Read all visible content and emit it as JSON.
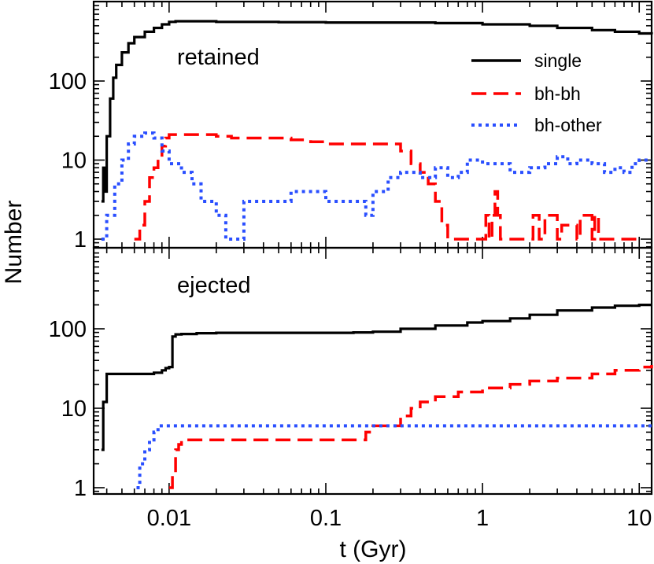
{
  "chart_data": {
    "type": "line",
    "xlabel": "t (Gyr)",
    "ylabel": "Number",
    "xscale": "log",
    "yscale": "log",
    "xlim": [
      0.0033,
      12
    ],
    "x_ticklabels": [
      "0.01",
      "0.1",
      "1",
      "10"
    ],
    "legend": {
      "placement": "top-right of upper panel",
      "entries": [
        {
          "name": "single",
          "color": "#000000",
          "style": "solid"
        },
        {
          "name": "bh-bh",
          "color": "#ff0000",
          "style": "dashed"
        },
        {
          "name": "bh-other",
          "color": "#2a4fff",
          "style": "dotted"
        }
      ]
    },
    "panels": [
      {
        "label": "retained",
        "ylim": [
          0.8,
          1000
        ],
        "y_ticklabels": [
          "1",
          "10",
          "100"
        ],
        "series": [
          {
            "name": "single",
            "x": [
              0.0037,
              0.0038,
              0.0039,
              0.004,
              0.0042,
              0.0044,
              0.0046,
              0.005,
              0.0055,
              0.006,
              0.007,
              0.008,
              0.009,
              0.01,
              0.011,
              0.02,
              0.05,
              0.1,
              0.3,
              0.5,
              1,
              2,
              3,
              5,
              7,
              10,
              12
            ],
            "y": [
              3,
              8,
              4,
              20,
              60,
              110,
              160,
              230,
              300,
              360,
              420,
              470,
              520,
              560,
              570,
              560,
              555,
              550,
              550,
              540,
              520,
              500,
              470,
              440,
              420,
              400,
              390
            ]
          },
          {
            "name": "bh-bh",
            "x": [
              0.006,
              0.0065,
              0.007,
              0.0075,
              0.008,
              0.0085,
              0.009,
              0.0095,
              0.01,
              0.012,
              0.015,
              0.02,
              0.025,
              0.03,
              0.06,
              0.08,
              0.1,
              0.2,
              0.3,
              0.35,
              0.4,
              0.45,
              0.5,
              0.55,
              0.6,
              1,
              1.05,
              1.1,
              1.15,
              1.2,
              1.25,
              1.3,
              1.5,
              2,
              2.1,
              2.3,
              2.5,
              3,
              3.2,
              4,
              4.2,
              5,
              5.2,
              5.5,
              6,
              10
            ],
            "y": [
              1,
              1.5,
              3,
              6,
              8,
              11,
              15,
              19,
              21,
              21,
              21,
              20,
              19,
              19,
              18,
              17,
              16,
              16,
              13,
              9,
              7,
              5,
              3,
              1.5,
              1,
              1,
              2,
              1,
              2,
              4,
              2,
              1,
              1,
              1,
              2,
              1,
              2,
              1,
              1.5,
              1,
              2,
              1,
              2,
              1,
              1,
              1
            ]
          },
          {
            "name": "bh-other",
            "x": [
              0.0037,
              0.004,
              0.0045,
              0.005,
              0.0055,
              0.006,
              0.007,
              0.008,
              0.009,
              0.01,
              0.012,
              0.014,
              0.016,
              0.02,
              0.023,
              0.03,
              0.05,
              0.06,
              0.1,
              0.15,
              0.18,
              0.2,
              0.25,
              0.3,
              0.4,
              0.5,
              0.6,
              0.7,
              0.8,
              1,
              1.5,
              2,
              2.5,
              3,
              3.5,
              4,
              5,
              6,
              7,
              8,
              9,
              10,
              12
            ],
            "y": [
              1,
              2,
              5,
              10,
              16,
              20,
              22,
              19,
              13,
              9,
              7,
              5,
              3,
              2,
              1,
              3,
              3,
              4,
              3,
              3,
              2,
              4,
              6,
              7,
              6,
              8,
              6,
              7,
              10,
              9,
              7,
              8,
              9,
              11,
              9,
              10,
              9,
              7,
              8,
              7,
              9,
              10,
              10
            ]
          }
        ]
      },
      {
        "label": "ejected",
        "ylim": [
          0.8,
          1000
        ],
        "y_ticklabels": [
          "1",
          "10",
          "100"
        ],
        "series": [
          {
            "name": "single",
            "x": [
              0.0037,
              0.0038,
              0.004,
              0.005,
              0.007,
              0.008,
              0.009,
              0.0095,
              0.01,
              0.0105,
              0.011,
              0.012,
              0.015,
              0.02,
              0.05,
              0.1,
              0.15,
              0.2,
              0.3,
              0.5,
              0.8,
              1,
              1.5,
              2,
              3,
              5,
              7,
              10,
              12
            ],
            "y": [
              3,
              12,
              27,
              27,
              27,
              28,
              30,
              32,
              33,
              80,
              85,
              86,
              88,
              89,
              89,
              89,
              90,
              92,
              100,
              110,
              120,
              125,
              135,
              150,
              170,
              185,
              195,
              200,
              200
            ]
          },
          {
            "name": "bh-bh",
            "x": [
              0.01,
              0.0105,
              0.011,
              0.0115,
              0.012,
              0.013,
              0.015,
              0.02,
              0.05,
              0.1,
              0.15,
              0.18,
              0.2,
              0.25,
              0.3,
              0.35,
              0.4,
              0.5,
              0.7,
              1,
              1.5,
              2,
              3,
              5,
              7,
              10,
              12
            ],
            "y": [
              1,
              1.5,
              3,
              3.5,
              4,
              4,
              4,
              4,
              4,
              4,
              4,
              5,
              6,
              6,
              8,
              10,
              12,
              14,
              16,
              18,
              20,
              22,
              24,
              27,
              30,
              33,
              35
            ]
          },
          {
            "name": "bh-other",
            "x": [
              0.0062,
              0.0065,
              0.007,
              0.0075,
              0.008,
              0.0085,
              0.009,
              0.1,
              1,
              10,
              12
            ],
            "y": [
              1,
              2,
              3,
              4,
              5,
              6,
              6,
              6,
              6,
              6,
              6
            ]
          }
        ]
      }
    ]
  }
}
